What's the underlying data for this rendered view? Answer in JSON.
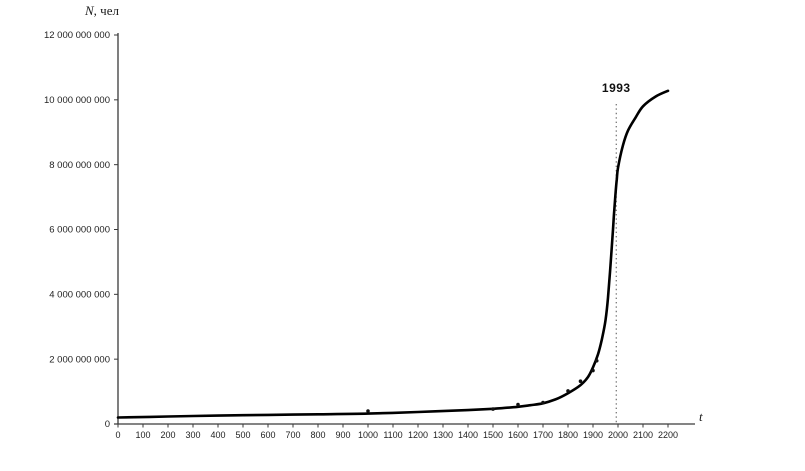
{
  "page": {
    "background_color": "#ffffff"
  },
  "chart_data": {
    "type": "line",
    "title": "",
    "ylabel": "N, чел",
    "ylabel_var": "N",
    "ylabel_unit": ", чел",
    "xlabel": "t",
    "xlim": [
      0,
      2200
    ],
    "ylim": [
      0,
      12000000000
    ],
    "grid": false,
    "legend": "none",
    "x_tick_labels": [
      "0",
      "100",
      "200",
      "300",
      "400",
      "500",
      "600",
      "700",
      "800",
      "900",
      "1000",
      "1100",
      "1200",
      "1300",
      "1400",
      "1500",
      "1600",
      "1700",
      "1800",
      "1900",
      "2000",
      "2100",
      "2200"
    ],
    "y_ticks": [
      {
        "value": 0,
        "label": "0"
      },
      {
        "value": 2000000000,
        "label": "2 000 000 000"
      },
      {
        "value": 4000000000,
        "label": "4 000 000 000"
      },
      {
        "value": 6000000000,
        "label": "6 000 000 000"
      },
      {
        "value": 8000000000,
        "label": "8 000 000 000"
      },
      {
        "value": 10000000000,
        "label": "10 000 000 000"
      },
      {
        "value": 12000000000,
        "label": "12 000 000 000"
      }
    ],
    "annotation": {
      "label": "1993",
      "year": 1993,
      "style": "dotted-vertical-line"
    },
    "series": [
      {
        "name": "model-curve",
        "type": "line",
        "color": "#000000",
        "points": [
          [
            0,
            200000000
          ],
          [
            200,
            230000000
          ],
          [
            400,
            260000000
          ],
          [
            600,
            280000000
          ],
          [
            800,
            300000000
          ],
          [
            1000,
            320000000
          ],
          [
            1200,
            370000000
          ],
          [
            1400,
            430000000
          ],
          [
            1500,
            470000000
          ],
          [
            1600,
            530000000
          ],
          [
            1650,
            580000000
          ],
          [
            1700,
            640000000
          ],
          [
            1750,
            760000000
          ],
          [
            1800,
            950000000
          ],
          [
            1850,
            1200000000
          ],
          [
            1880,
            1450000000
          ],
          [
            1900,
            1750000000
          ],
          [
            1920,
            2150000000
          ],
          [
            1935,
            2600000000
          ],
          [
            1950,
            3200000000
          ],
          [
            1960,
            3900000000
          ],
          [
            1970,
            4900000000
          ],
          [
            1980,
            6000000000
          ],
          [
            1985,
            6600000000
          ],
          [
            1990,
            7100000000
          ],
          [
            1995,
            7550000000
          ],
          [
            2000,
            7900000000
          ],
          [
            2020,
            8600000000
          ],
          [
            2040,
            9050000000
          ],
          [
            2070,
            9450000000
          ],
          [
            2100,
            9800000000
          ],
          [
            2150,
            10100000000
          ],
          [
            2200,
            10280000000
          ]
        ]
      },
      {
        "name": "observed-population",
        "type": "scatter",
        "color": "#000000",
        "points": [
          [
            1000,
            400000000
          ],
          [
            1500,
            460000000
          ],
          [
            1600,
            600000000
          ],
          [
            1700,
            660000000
          ],
          [
            1800,
            1020000000
          ],
          [
            1850,
            1320000000
          ],
          [
            1900,
            1650000000
          ],
          [
            1915,
            1950000000
          ]
        ]
      }
    ]
  },
  "colors": {
    "axis": "#3a3a3a",
    "tick_text": "#222222",
    "curve": "#000000",
    "dotted_line": "#606060",
    "scatter": "#111111"
  }
}
